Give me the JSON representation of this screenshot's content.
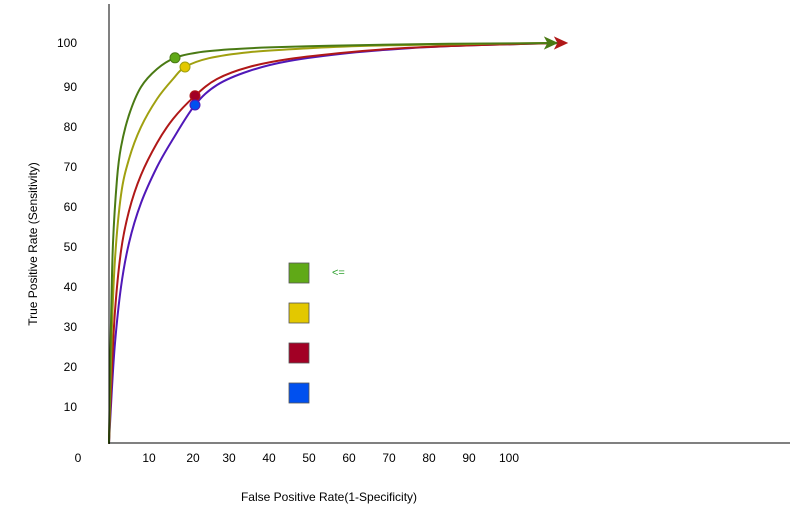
{
  "chart_data": {
    "type": "line",
    "xlabel": "False Positive Rate(1-Specificity)",
    "ylabel": "True Positive Rate (Sensitivity)",
    "origin_label": "0",
    "x_ticks": [
      10,
      20,
      30,
      40,
      50,
      60,
      70,
      80,
      90,
      100
    ],
    "y_ticks": [
      10,
      20,
      30,
      40,
      50,
      60,
      70,
      80,
      90,
      100
    ],
    "series": [
      {
        "color": "#4a7a14",
        "marker_color": "#60a917",
        "arrow": true,
        "x": [
          0,
          0.5,
          1,
          2,
          3,
          5,
          8,
          12,
          16.5,
          22,
          30,
          40,
          55,
          70,
          85,
          100,
          111.5
        ],
        "y": [
          0,
          30,
          50,
          66,
          74,
          82,
          89,
          93.5,
          96.3,
          97.6,
          98.4,
          98.9,
          99.3,
          99.6,
          99.8,
          99.9,
          100
        ],
        "point": {
          "x": 16.5,
          "y": 96.3
        }
      },
      {
        "color": "#a0a010",
        "marker_color": "#e3c800",
        "arrow": false,
        "x": [
          0,
          0.7,
          1.5,
          3,
          5,
          8,
          12,
          16,
          19,
          25,
          35,
          50,
          65,
          80,
          95,
          110
        ],
        "y": [
          0,
          28,
          46,
          62,
          71,
          79,
          86,
          91,
          94,
          96.2,
          97.7,
          98.7,
          99.3,
          99.6,
          99.8,
          100
        ],
        "point": {
          "x": 19,
          "y": 94
        }
      },
      {
        "color": "#b01818",
        "marker_color": "#a20025",
        "arrow": true,
        "x": [
          0,
          0.7,
          1.5,
          3,
          5,
          8,
          12,
          16,
          21.5,
          27,
          35,
          45,
          60,
          75,
          90,
          105,
          114
        ],
        "y": [
          0,
          18,
          33,
          48,
          58,
          67,
          75,
          81,
          86.8,
          91,
          94,
          96,
          97.7,
          98.8,
          99.4,
          99.8,
          100
        ],
        "point": {
          "x": 21.5,
          "y": 86.8
        }
      },
      {
        "color": "#5018b8",
        "marker_color": "#0050ef",
        "arrow": false,
        "x": [
          0,
          0.7,
          1.5,
          3,
          5,
          8,
          12,
          16,
          21.5,
          27,
          35,
          45,
          60,
          75,
          90,
          105,
          112
        ],
        "y": [
          0,
          13,
          25,
          39,
          50,
          60,
          69,
          76,
          84.5,
          89.5,
          93,
          95.5,
          97.5,
          98.7,
          99.4,
          99.8,
          100
        ],
        "point": {
          "x": 21.5,
          "y": 84.5
        }
      }
    ],
    "legend": [
      {
        "color": "#60a917",
        "note": "<="
      },
      {
        "color": "#e3c800",
        "note": ""
      },
      {
        "color": "#a20025",
        "note": ""
      },
      {
        "color": "#0050ef",
        "note": ""
      }
    ],
    "legend_note_color": "#2ca02c",
    "axis_color": "#000000"
  }
}
